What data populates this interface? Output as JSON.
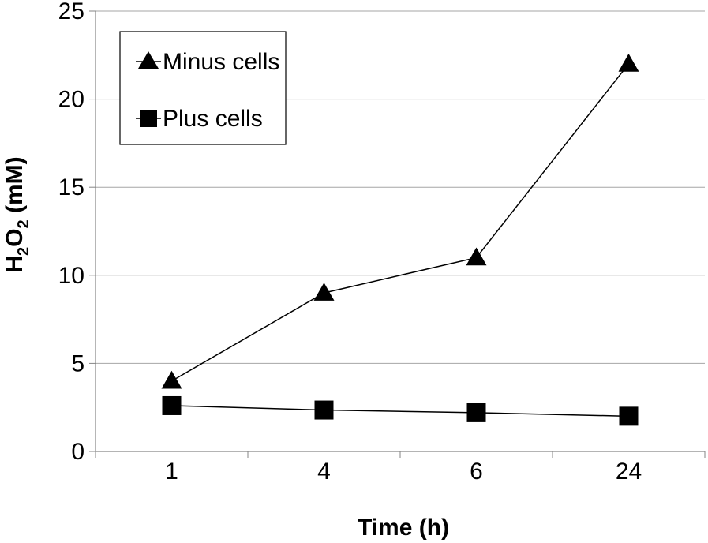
{
  "chart_data": {
    "type": "line",
    "categories": [
      "1",
      "4",
      "6",
      "24"
    ],
    "series": [
      {
        "name": "Minus cells",
        "marker": "triangle",
        "values": [
          4,
          9,
          11,
          22
        ]
      },
      {
        "name": "Plus cells",
        "marker": "square",
        "values": [
          2.6,
          2.35,
          2.2,
          2.0
        ]
      }
    ],
    "xlabel": "Time (h)",
    "ylabel": {
      "base": "H",
      "sub1": "2",
      "mid": "O",
      "sub2": "2",
      "rest": " (mM)"
    },
    "ylim": [
      0,
      25
    ],
    "yticks": [
      0,
      5,
      10,
      15,
      20,
      25
    ],
    "grid": true,
    "legend_position": "top-left",
    "colors": {
      "line": "#000000",
      "marker": "#000000",
      "grid": "#a6a6a6",
      "axis": "#868686"
    }
  }
}
